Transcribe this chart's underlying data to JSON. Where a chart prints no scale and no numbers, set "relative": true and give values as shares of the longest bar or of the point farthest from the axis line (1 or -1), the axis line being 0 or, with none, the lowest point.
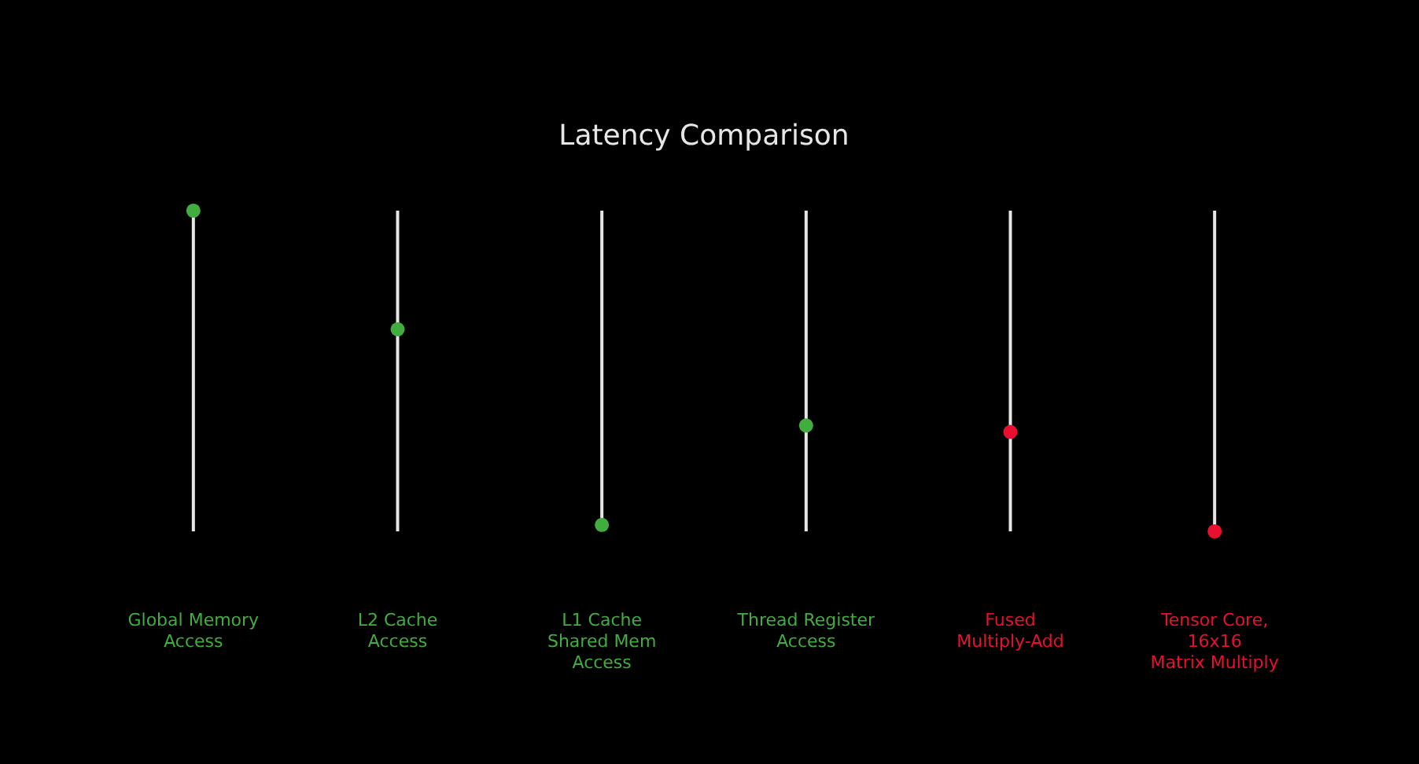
{
  "chart_data": {
    "type": "scatter",
    "title": "Latency Comparison",
    "categories": [
      "Global Memory\nAccess",
      "L2 Cache\nAccess",
      "L1 Cache\nShared Mem\nAccess",
      "Thread Register\nAccess",
      "Fused\nMultiply-Add",
      "Tensor Core,\n16x16\nMatrix Multiply"
    ],
    "values": [
      1,
      0.63,
      0.02,
      0.33,
      0.31,
      0
    ],
    "colors": [
      "#3fae3f",
      "#3fae3f",
      "#3fae3f",
      "#3fae3f",
      "#e8102e",
      "#e8102e"
    ],
    "relative": true,
    "grid": "x",
    "marker": "circle"
  }
}
